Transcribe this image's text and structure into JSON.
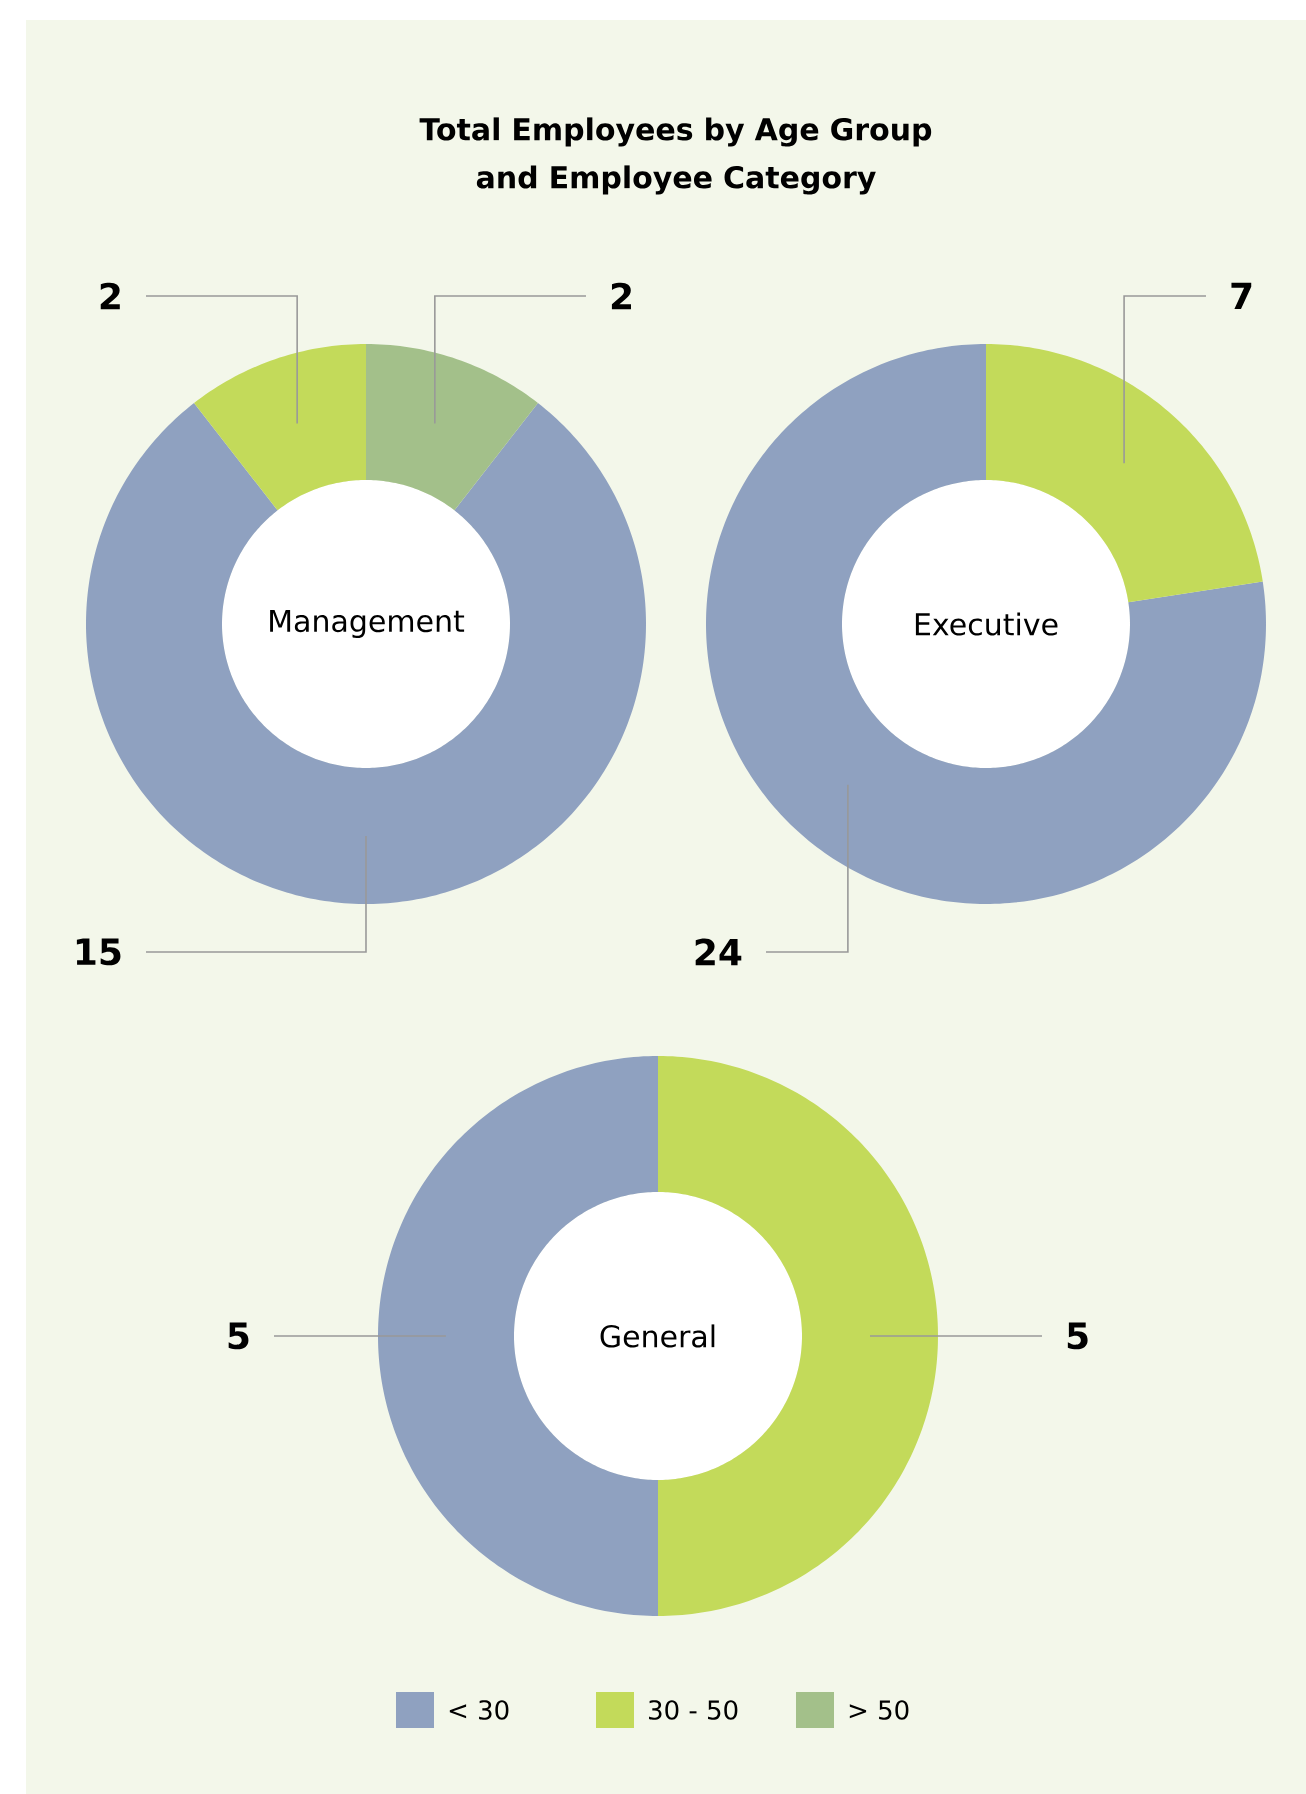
{
  "chart_data": [
    {
      "type": "donut",
      "title": "Total Employees by Age Group\nand Employee Category",
      "annotations": [
        "Management"
      ],
      "categories": [
        "< 30",
        "30 - 50",
        "> 50"
      ],
      "values": [
        15,
        2,
        2
      ],
      "colors": [
        "#8fa1c0",
        "#c3da5a",
        "#a3c08a"
      ],
      "data_labels": true,
      "legend": "bottom"
    },
    {
      "type": "donut",
      "annotations": [
        "Executive"
      ],
      "categories": [
        null,
        null
      ],
      "values": [
        24,
        7
      ],
      "colors": [
        "#8fa1c0",
        "#c3da5a"
      ],
      "data_labels": true
    },
    {
      "type": "donut",
      "annotations": [
        "General"
      ],
      "categories": [
        null,
        null
      ],
      "values": [
        5,
        5
      ],
      "colors": [
        "#8fa1c0",
        "#c3da5a"
      ],
      "data_labels": true
    }
  ]
}
